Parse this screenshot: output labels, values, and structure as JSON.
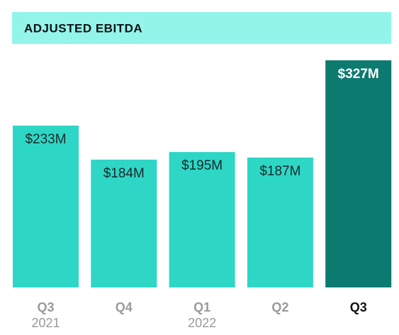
{
  "chart_data": {
    "type": "bar",
    "title": "ADJUSTED EBITDA",
    "categories": [
      "Q3",
      "Q4",
      "Q1",
      "Q2",
      "Q3"
    ],
    "category_groups": [
      "2021",
      null,
      "2022",
      null,
      null
    ],
    "values": [
      233,
      184,
      195,
      187,
      327
    ],
    "value_labels": [
      "$233M",
      "$184M",
      "$195M",
      "$187M",
      "$327M"
    ],
    "colors": [
      "#2ed6c6",
      "#2ed6c6",
      "#2ed6c6",
      "#2ed6c6",
      "#0d7a70"
    ],
    "grid": false
  }
}
